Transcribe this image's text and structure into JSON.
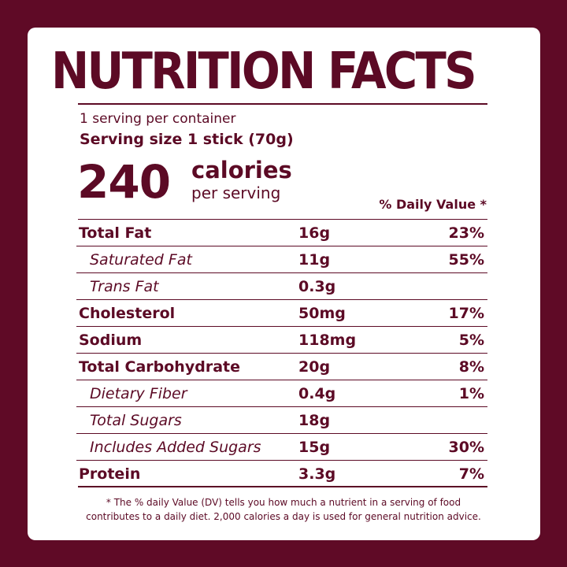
{
  "label": {
    "title": "NUTRITION FACTS",
    "servings_per_container": "1 serving per container",
    "serving_size": "Serving size 1 stick  (70g)",
    "calories_value": "240",
    "calories_word": "calories",
    "calories_sub": "per serving",
    "dv_header": "% Daily Value *",
    "rows": [
      {
        "name": "Total Fat",
        "amount": "16g",
        "dv": "23%"
      },
      {
        "name": "Saturated Fat",
        "amount": "11g",
        "dv": "55%"
      },
      {
        "name": "Trans Fat",
        "amount": "0.3g",
        "dv": ""
      },
      {
        "name": "Cholesterol",
        "amount": "50mg",
        "dv": "17%"
      },
      {
        "name": "Sodium",
        "amount": "118mg",
        "dv": "5%"
      },
      {
        "name": "Total Carbohydrate",
        "amount": "20g",
        "dv": "8%"
      },
      {
        "name": "Dietary Fiber",
        "amount": "0.4g",
        "dv": "1%"
      },
      {
        "name": "Total Sugars",
        "amount": "18g",
        "dv": ""
      },
      {
        "name": "Includes Added Sugars",
        "amount": "15g",
        "dv": "30%"
      },
      {
        "name": "Protein",
        "amount": "3.3g",
        "dv": "7%"
      }
    ],
    "footnote_line1": "* The % daily Value (DV) tells you how much a nutrient in a serving of food",
    "footnote_line2": "contributes to a daily diet. 2,000 calories a day is used for general nutrition advice."
  },
  "colors": {
    "background": "#5f0a26",
    "card": "#ffffff",
    "text": "#5c0a25"
  }
}
